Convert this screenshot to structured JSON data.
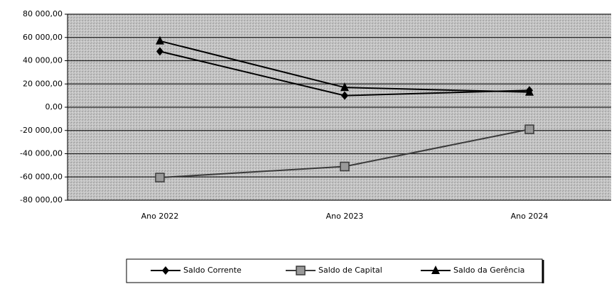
{
  "chart_data": {
    "type": "line",
    "categories": [
      "Ano 2022",
      "Ano 2023",
      "Ano 2024"
    ],
    "series": [
      {
        "name": "Saldo Corrente",
        "color": "#000000",
        "marker": "diamond",
        "values": [
          48000,
          10000,
          14500
        ]
      },
      {
        "name": "Saldo de Capital",
        "color": "#3a3a3a",
        "marker": "square",
        "values": [
          -60500,
          -51000,
          -19000
        ]
      },
      {
        "name": "Saldo da Gerência",
        "color": "#000000",
        "marker": "triangle",
        "values": [
          57000,
          17000,
          13000
        ]
      }
    ],
    "ylim": [
      -80000,
      80000
    ],
    "yticks": [
      {
        "value": -80000,
        "label": "-80 000,00"
      },
      {
        "value": -60000,
        "label": "-60 000,00"
      },
      {
        "value": -40000,
        "label": "-40 000,00"
      },
      {
        "value": -20000,
        "label": "-20 000,00"
      },
      {
        "value": 0,
        "label": "0,00"
      },
      {
        "value": 20000,
        "label": "20 000,00"
      },
      {
        "value": 40000,
        "label": "40 000,00"
      },
      {
        "value": 60000,
        "label": "60 000,00"
      },
      {
        "value": 80000,
        "label": "80 000,00"
      }
    ],
    "grid": true
  }
}
